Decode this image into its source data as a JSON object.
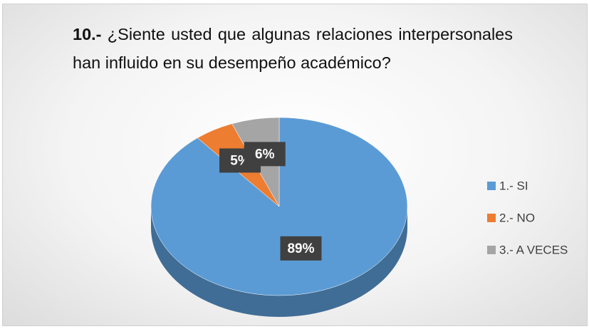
{
  "chart_data": {
    "type": "pie",
    "title": {
      "number": "10.-",
      "text": "¿Siente usted que algunas relaciones interpersonales han influido en su desempeño académico?"
    },
    "categories": [
      "1.- SI",
      "2.- NO",
      "3.- A VECES"
    ],
    "values": [
      89,
      5,
      6
    ],
    "value_labels": [
      "89%",
      "5%",
      "6%"
    ],
    "colors": [
      "#5b9bd5",
      "#ed7d31",
      "#a5a5a5"
    ],
    "legend": "right"
  }
}
